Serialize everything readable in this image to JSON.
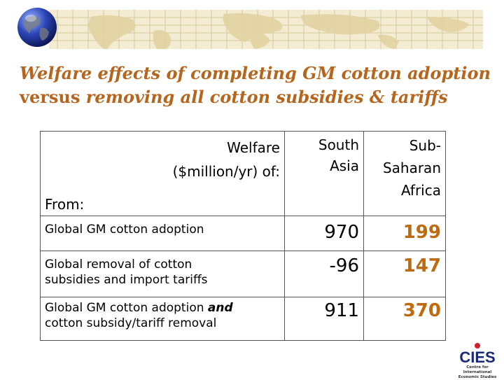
{
  "title": {
    "line1": "Welfare effects of completing GM cotton adoption",
    "line2_word": "versus",
    "line2_rest": " removing all cotton subsidies & tariffs"
  },
  "table": {
    "header": {
      "welfare": "Welfare",
      "unit": "($million/yr)  of:",
      "from": "From:",
      "col_south_asia": "South Asia",
      "col_ssa": "Sub-Saharan Africa"
    },
    "rows": [
      {
        "label": "Global GM cotton adoption",
        "south_asia": "970",
        "ssa": "199"
      },
      {
        "label": "Global removal of cotton subsidies and import tariffs",
        "south_asia": "-96",
        "ssa": "147"
      },
      {
        "label_a": "Global GM cotton adoption ",
        "label_em": "and",
        "label_b": " cotton subsidy/tariff removal",
        "south_asia": "911",
        "ssa": "370"
      }
    ]
  },
  "logo": {
    "mark": "CIES",
    "caption": "Centre for International Economic Studies"
  },
  "colors": {
    "title": "#b5651d",
    "highlight": "#c06a10",
    "banner": "#f4ecd2"
  },
  "icons": {
    "banner": "world-map-banner",
    "globe": "globe-icon"
  }
}
